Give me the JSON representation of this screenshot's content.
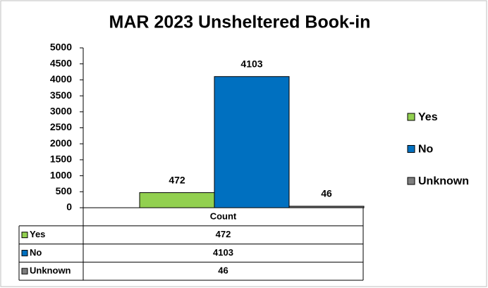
{
  "chart_data": {
    "type": "bar",
    "title": "MAR 2023 Unsheltered Book-in",
    "categories": [
      "Count"
    ],
    "series": [
      {
        "name": "Yes",
        "color": "#92d050",
        "values": [
          472
        ]
      },
      {
        "name": "No",
        "color": "#0070c0",
        "values": [
          4103
        ]
      },
      {
        "name": "Unknown",
        "color": "#7f7f7f",
        "values": [
          46
        ]
      }
    ],
    "ylim": [
      0,
      5000
    ],
    "yticks": [
      0,
      500,
      1000,
      1500,
      2000,
      2500,
      3000,
      3500,
      4000,
      4500,
      5000
    ],
    "legend": "right",
    "data_table": true
  }
}
